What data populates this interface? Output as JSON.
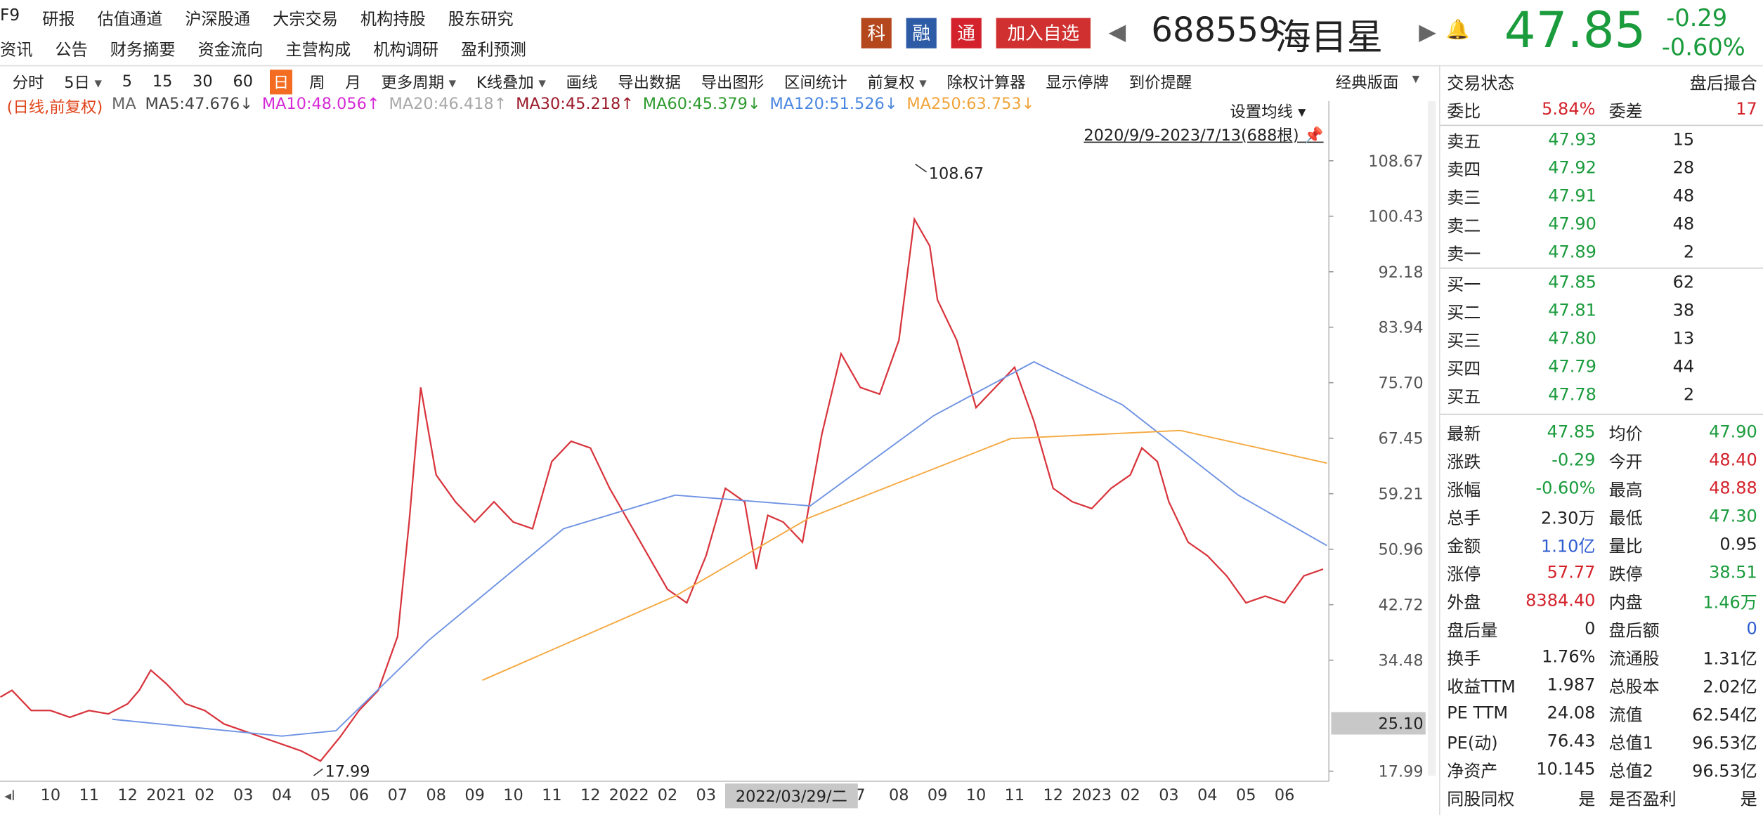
{
  "toolbar": {
    "row1": [
      "F9",
      "研报",
      "估值通道",
      "沪深股通",
      "大宗交易",
      "机构持股",
      "股东研究"
    ],
    "row2": [
      "资讯",
      "公告",
      "财务摘要",
      "资金流向",
      "主营构成",
      "机构调研",
      "盈利预测"
    ]
  },
  "quote": {
    "badges": [
      {
        "text": "科",
        "color": "#b4471c"
      },
      {
        "text": "融",
        "color": "#2d5ba6"
      },
      {
        "text": "通",
        "color": "#d3222b"
      }
    ],
    "add_button": "加入自选",
    "code": "688559",
    "name": "海目星",
    "price": 47.85,
    "change": -0.29,
    "change_pct": "-0.60%"
  },
  "periods": {
    "items": [
      {
        "text": "分时"
      },
      {
        "text": "5日",
        "dropdown": true
      },
      {
        "text": "5"
      },
      {
        "text": "15"
      },
      {
        "text": "30"
      },
      {
        "text": "60"
      },
      {
        "text": "日",
        "selected": true
      },
      {
        "text": "周"
      },
      {
        "text": "月"
      },
      {
        "text": "更多周期",
        "dropdown": true
      },
      {
        "text": "K线叠加",
        "dropdown": true
      },
      {
        "text": "画线"
      },
      {
        "text": "导出数据"
      },
      {
        "text": "导出图形"
      },
      {
        "text": "区间统计"
      },
      {
        "text": "前复权",
        "dropdown": true
      },
      {
        "text": "除权计算器"
      },
      {
        "text": "显示停牌"
      },
      {
        "text": "到价提醒"
      }
    ],
    "layout_button": "经典版面"
  },
  "legend": {
    "mode": "(日线,前复权)",
    "prefix": "MA",
    "items": [
      {
        "text": "MA5:47.676↓",
        "color": "#444444"
      },
      {
        "text": "MA10:48.056↑",
        "color": "#d52ad5"
      },
      {
        "text": "MA20:46.418↑",
        "color": "#a8a8a8"
      },
      {
        "text": "MA30:45.218↑",
        "color": "#9b1b2a"
      },
      {
        "text": "MA60:45.379↓",
        "color": "#2c9a2c"
      },
      {
        "text": "MA120:51.526↓",
        "color": "#4a86e0"
      },
      {
        "text": "MA250:63.753↓",
        "color": "#f0a43a"
      }
    ],
    "ma_settings": "设置均线",
    "range": "2020/9/9-2023/7/13(688根)"
  },
  "chart_data": {
    "type": "line",
    "xlim": [
      -1.31,
      33.15
    ],
    "ylim": [
      16.49,
      114.18
    ],
    "yticks": [
      108.67,
      100.43,
      92.18,
      83.94,
      {
        "value": 75.7,
        "label": "75.70"
      },
      67.45,
      59.21,
      50.96,
      42.72,
      34.48,
      17.99
    ],
    "categories": [
      "10",
      "11",
      "12",
      "2021",
      "02",
      "03",
      "04",
      "05",
      "06",
      "07",
      "08",
      "09",
      "10",
      "11",
      "12",
      "2022",
      "02",
      "03",
      null,
      null,
      null,
      "7",
      "08",
      "09",
      "10",
      "11",
      "12",
      "2023",
      "02",
      "03",
      "04",
      "05",
      "06"
    ],
    "series": [
      {
        "color": "#d8343c",
        "x": [
          -1.3,
          -1,
          -0.5,
          0,
          0.5,
          1,
          1.5,
          2,
          2.3,
          2.6,
          3,
          3.5,
          4,
          4.5,
          5,
          5.5,
          6,
          6.5,
          7,
          7.5,
          8,
          8.5,
          9,
          9.3,
          9.6,
          10,
          10.5,
          11,
          11.5,
          12,
          12.5,
          13,
          13.5,
          14,
          14.5,
          15,
          15.5,
          16,
          16.5,
          17,
          17.5,
          18,
          18.3,
          18.6,
          19,
          19.5,
          20,
          20.5,
          21,
          21.5,
          22,
          22.4,
          22.8,
          23,
          23.5,
          24,
          24.5,
          25,
          25.5,
          26,
          26.5,
          27,
          27.5,
          28,
          28.3,
          28.7,
          29,
          29.5,
          30,
          30.5,
          31,
          31.5,
          32,
          32.5,
          33
        ],
        "values": [
          29,
          30,
          27,
          27,
          26,
          27,
          26.5,
          28,
          30,
          33,
          31,
          28,
          27,
          25,
          24,
          23,
          22,
          21,
          19.5,
          23,
          27,
          30,
          38,
          55,
          75,
          62,
          58,
          55,
          58,
          55,
          54,
          64,
          67,
          66,
          60,
          55,
          50,
          45,
          43,
          50,
          60,
          58,
          48,
          56,
          55,
          52,
          68,
          80,
          75,
          74,
          82,
          100,
          96,
          88,
          82,
          72,
          75,
          78,
          70,
          60,
          58,
          57,
          60,
          62,
          66,
          64,
          58,
          52,
          50,
          47,
          43,
          44,
          43,
          47,
          48
        ]
      },
      {
        "color": "#6f93e3",
        "x": [
          1.6,
          6,
          7.4,
          9.8,
          13.3,
          16.2,
          19.7,
          22.9,
          25.5,
          27.8,
          30.8,
          33.1
        ],
        "values": [
          25.7,
          23.2,
          24,
          37.4,
          54,
          59,
          57.4,
          70.8,
          78.8,
          72.4,
          59,
          51.5
        ]
      },
      {
        "color": "#f5a941",
        "x": [
          11.2,
          16.2,
          19.7,
          24.9,
          29.3,
          33.1
        ],
        "values": [
          31.5,
          44,
          55.7,
          67.4,
          68.6,
          63.75
        ]
      }
    ],
    "high": {
      "x": 22.25,
      "value": 108.67
    },
    "low": {
      "x": 7.0,
      "value": 17.99
    },
    "cursor_price": {
      "value": 25.1,
      "label": "25.10"
    },
    "cursor_date": "2022/03/29/二"
  },
  "panel": {
    "header": [
      "交易状态",
      "盘后撮合"
    ],
    "ratio": [
      {
        "text": "委比"
      },
      {
        "text": "5.84%",
        "color": "#d3222b"
      },
      {
        "text": "委差"
      },
      {
        "text": "17",
        "color": "#d3222b"
      }
    ],
    "sell": [
      [
        "卖五",
        "47.93",
        "15"
      ],
      [
        "卖四",
        "47.92",
        "28"
      ],
      [
        "卖三",
        "47.91",
        "48"
      ],
      [
        "卖二",
        "47.90",
        "48"
      ],
      [
        "卖一",
        "47.89",
        "2"
      ]
    ],
    "buy": [
      [
        "买一",
        "47.85",
        "62"
      ],
      [
        "买二",
        "47.81",
        "38"
      ],
      [
        "买三",
        "47.80",
        "13"
      ],
      [
        "买四",
        "47.79",
        "44"
      ],
      [
        "买五",
        "47.78",
        "2"
      ]
    ],
    "stats": [
      [
        {
          "text": "最新"
        },
        {
          "text": "47.85",
          "color": "#1a9b3c"
        },
        {
          "text": "均价"
        },
        {
          "text": "47.90",
          "color": "#1a9b3c"
        }
      ],
      [
        {
          "text": "涨跌"
        },
        {
          "text": "-0.29",
          "color": "#1a9b3c"
        },
        {
          "text": "今开"
        },
        {
          "text": "48.40",
          "color": "#d3222b"
        }
      ],
      [
        {
          "text": "涨幅"
        },
        {
          "text": "-0.60%",
          "color": "#1a9b3c"
        },
        {
          "text": "最高"
        },
        {
          "text": "48.88",
          "color": "#d3222b"
        }
      ],
      [
        {
          "text": "总手"
        },
        {
          "text": "2.30万"
        },
        {
          "text": "最低"
        },
        {
          "text": "47.30",
          "color": "#1a9b3c"
        }
      ],
      [
        {
          "text": "金额"
        },
        {
          "text": "1.10亿",
          "color": "#2d5bd0"
        },
        {
          "text": "量比"
        },
        {
          "text": "0.95"
        }
      ],
      [
        {
          "text": "涨停"
        },
        {
          "text": "57.77",
          "color": "#d3222b"
        },
        {
          "text": "跌停"
        },
        {
          "text": "38.51",
          "color": "#1a9b3c"
        }
      ],
      [
        {
          "text": "外盘"
        },
        {
          "text": "8384.40",
          "color": "#d3222b"
        },
        {
          "text": "内盘"
        },
        {
          "text": "1.46万",
          "color": "#1a9b3c"
        }
      ],
      [
        {
          "text": "盘后量"
        },
        {
          "text": "0"
        },
        {
          "text": "盘后额"
        },
        {
          "text": "0",
          "color": "#2d5bd0"
        }
      ],
      [
        {
          "text": "换手"
        },
        {
          "text": "1.76%"
        },
        {
          "text": "流通股"
        },
        {
          "text": "1.31亿"
        }
      ],
      [
        {
          "text": "收益TTM"
        },
        {
          "text": "1.987"
        },
        {
          "text": "总股本"
        },
        {
          "text": "2.02亿"
        }
      ],
      [
        {
          "text": "PE TTM"
        },
        {
          "text": "24.08"
        },
        {
          "text": "流值"
        },
        {
          "text": "62.54亿"
        }
      ],
      [
        {
          "text": "PE(动)"
        },
        {
          "text": "76.43"
        },
        {
          "text": "总值1"
        },
        {
          "text": "96.53亿"
        }
      ],
      [
        {
          "text": "净资产"
        },
        {
          "text": "10.145"
        },
        {
          "text": "总值2"
        },
        {
          "text": "96.53亿"
        }
      ],
      [
        {
          "text": "同股同权"
        },
        {
          "text": "是"
        },
        {
          "text": "是否盈利"
        },
        {
          "text": "是"
        }
      ]
    ]
  }
}
